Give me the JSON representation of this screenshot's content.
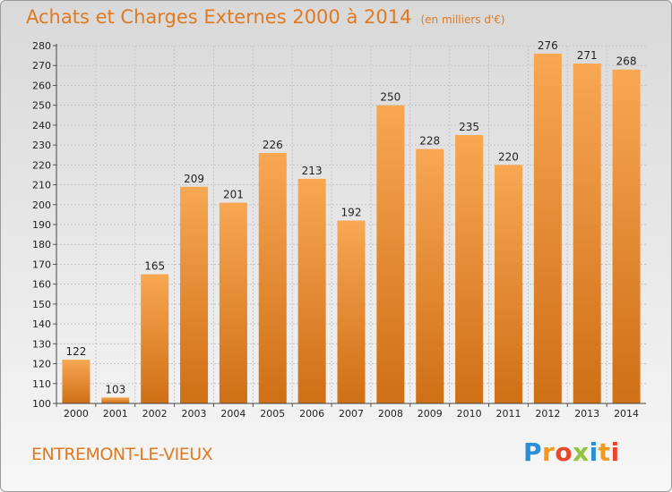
{
  "title": "Achats et Charges Externes 2000 à 2014",
  "unit": "(en milliers d'€)",
  "commune": "ENTREMONT-LE-VIEUX",
  "logo": {
    "text": "Proxiti",
    "letters": [
      "P",
      "r",
      "o",
      "x",
      "i",
      "t",
      "i"
    ],
    "colors": [
      "#2a8fd4",
      "#f39a1e",
      "#e8472a",
      "#8dc63f",
      "#2a8fd4",
      "#f39a1e",
      "#e8472a"
    ]
  },
  "colors": {
    "bar_top": "#f8a752",
    "bar_bottom": "#cf6f16",
    "accent": "#e07a22"
  },
  "chart_data": {
    "type": "bar",
    "title": "Achats et Charges Externes 2000 à 2014",
    "categories": [
      "2000",
      "2001",
      "2002",
      "2003",
      "2004",
      "2005",
      "2006",
      "2007",
      "2008",
      "2009",
      "2010",
      "2011",
      "2012",
      "2013",
      "2014"
    ],
    "values": [
      122,
      103,
      165,
      209,
      201,
      226,
      213,
      192,
      250,
      228,
      235,
      220,
      276,
      271,
      268
    ],
    "ylim": [
      100,
      280
    ],
    "yticks": [
      100,
      110,
      120,
      130,
      140,
      150,
      160,
      170,
      180,
      190,
      200,
      210,
      220,
      230,
      240,
      250,
      260,
      270,
      280
    ],
    "grid": true
  }
}
